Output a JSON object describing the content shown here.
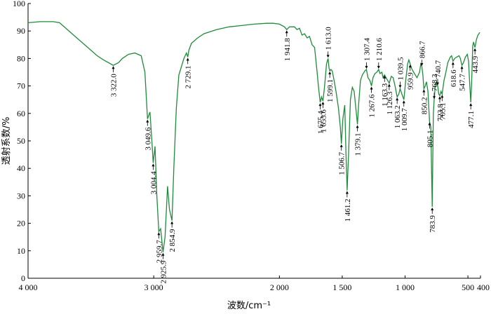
{
  "chart_data": {
    "type": "line",
    "xlabel": "波数/cm⁻¹",
    "ylabel": "透射系数/%",
    "xlim": [
      4000,
      400
    ],
    "ylim": [
      0,
      100
    ],
    "x_ticks": [
      4000,
      3000,
      2000,
      1500,
      1000,
      500,
      400
    ],
    "x_tick_labels": [
      "4 000",
      "3 000",
      "2 000",
      "1 500",
      "1 000",
      "500",
      "400"
    ],
    "y_ticks": [
      0,
      10,
      20,
      30,
      40,
      50,
      60,
      70,
      80,
      90,
      100
    ],
    "y_tick_labels": [
      "0",
      "10",
      "20",
      "30",
      "40",
      "50",
      "60",
      "70",
      "80",
      "90",
      "100"
    ],
    "line_color": "#1e8c3a",
    "series": [
      {
        "points": [
          [
            4000,
            93.0
          ],
          [
            3900,
            93.4
          ],
          [
            3800,
            93.4
          ],
          [
            3750,
            93.0
          ],
          [
            3700,
            91.0
          ],
          [
            3650,
            89.0
          ],
          [
            3600,
            87.0
          ],
          [
            3550,
            85.0
          ],
          [
            3500,
            83.0
          ],
          [
            3450,
            81.0
          ],
          [
            3400,
            79.5
          ],
          [
            3322,
            77.5
          ],
          [
            3280,
            78.5
          ],
          [
            3250,
            80.0
          ],
          [
            3200,
            81.5
          ],
          [
            3150,
            82.0
          ],
          [
            3100,
            81.0
          ],
          [
            3070,
            75.0
          ],
          [
            3049.6,
            58.0
          ],
          [
            3030,
            60.5
          ],
          [
            3015,
            50.0
          ],
          [
            3004.4,
            42.0
          ],
          [
            2990,
            48.0
          ],
          [
            2975,
            30.0
          ],
          [
            2959.7,
            17.0
          ],
          [
            2945,
            18.0
          ],
          [
            2925.9,
            9.5
          ],
          [
            2910,
            15.0
          ],
          [
            2890,
            33.5
          ],
          [
            2875,
            25.0
          ],
          [
            2854.9,
            21.0
          ],
          [
            2840,
            40.0
          ],
          [
            2820,
            62.0
          ],
          [
            2800,
            74.0
          ],
          [
            2760,
            80.0
          ],
          [
            2740,
            82.0
          ],
          [
            2729.1,
            80.5
          ],
          [
            2720,
            83.0
          ],
          [
            2700,
            85.5
          ],
          [
            2650,
            87.5
          ],
          [
            2600,
            89.0
          ],
          [
            2500,
            90.5
          ],
          [
            2400,
            91.5
          ],
          [
            2300,
            92.0
          ],
          [
            2200,
            92.5
          ],
          [
            2100,
            92.8
          ],
          [
            2050,
            92.8
          ],
          [
            2000,
            92.5
          ],
          [
            1960,
            91.5
          ],
          [
            1941.8,
            90.5
          ],
          [
            1920,
            91.5
          ],
          [
            1880,
            91.5
          ],
          [
            1860,
            90.5
          ],
          [
            1840,
            91.0
          ],
          [
            1820,
            88.5
          ],
          [
            1800,
            89.0
          ],
          [
            1780,
            87.5
          ],
          [
            1760,
            88.0
          ],
          [
            1740,
            85.0
          ],
          [
            1720,
            84.0
          ],
          [
            1700,
            75.0
          ],
          [
            1690,
            70.0
          ],
          [
            1675.4,
            64.0
          ],
          [
            1665,
            66.0
          ],
          [
            1653.6,
            64.5
          ],
          [
            1640,
            70.0
          ],
          [
            1625,
            78.0
          ],
          [
            1613,
            80.0
          ],
          [
            1605,
            76.5
          ],
          [
            1599.1,
            75.5
          ],
          [
            1590,
            76.0
          ],
          [
            1580,
            75.5
          ],
          [
            1565,
            72.0
          ],
          [
            1550,
            68.0
          ],
          [
            1530,
            62.0
          ],
          [
            1515,
            55.0
          ],
          [
            1506.7,
            49.0
          ],
          [
            1495,
            58.0
          ],
          [
            1480,
            63.0
          ],
          [
            1470,
            45.0
          ],
          [
            1461.2,
            32.0
          ],
          [
            1450,
            45.0
          ],
          [
            1435,
            65.0
          ],
          [
            1420,
            69.5
          ],
          [
            1405,
            68.0
          ],
          [
            1392,
            62.0
          ],
          [
            1379.1,
            56.0
          ],
          [
            1370,
            63.0
          ],
          [
            1355,
            72.0
          ],
          [
            1340,
            74.0
          ],
          [
            1320,
            75.5
          ],
          [
            1307.4,
            76.0
          ],
          [
            1295,
            73.0
          ],
          [
            1280,
            72.0
          ],
          [
            1267.6,
            70.0
          ],
          [
            1255,
            73.0
          ],
          [
            1240,
            74.5
          ],
          [
            1225,
            75.0
          ],
          [
            1210.6,
            76.0
          ],
          [
            1200,
            74.5
          ],
          [
            1185,
            75.0
          ],
          [
            1175,
            73.0
          ],
          [
            1163.3,
            74.0
          ],
          [
            1145,
            72.5
          ],
          [
            1126.3,
            71.0
          ],
          [
            1110,
            73.5
          ],
          [
            1095,
            73.0
          ],
          [
            1080,
            70.0
          ],
          [
            1063.2,
            66.0
          ],
          [
            1050,
            67.0
          ],
          [
            1039.5,
            69.0
          ],
          [
            1025,
            67.0
          ],
          [
            1009.7,
            65.0
          ],
          [
            995,
            72.0
          ],
          [
            980,
            78.0
          ],
          [
            970,
            79.5
          ],
          [
            959.9,
            78.0
          ],
          [
            945,
            76.0
          ],
          [
            925,
            74.5
          ],
          [
            905,
            73.0
          ],
          [
            885,
            75.0
          ],
          [
            875,
            78.0
          ],
          [
            866.7,
            77.0
          ],
          [
            858,
            74.0
          ],
          [
            850.2,
            69.0
          ],
          [
            840,
            70.0
          ],
          [
            830,
            71.5
          ],
          [
            818,
            68.0
          ],
          [
            805.1,
            57.0
          ],
          [
            795,
            55.0
          ],
          [
            783.9,
            26.0
          ],
          [
            775,
            60.0
          ],
          [
            768.3,
            65.0
          ],
          [
            760,
            70.0
          ],
          [
            750,
            71.5
          ],
          [
            740.7,
            70.0
          ],
          [
            732,
            67.0
          ],
          [
            723.8,
            66.5
          ],
          [
            714,
            68.0
          ],
          [
            705.1,
            67.0
          ],
          [
            690,
            72.0
          ],
          [
            675,
            75.0
          ],
          [
            660,
            78.5
          ],
          [
            640,
            80.5
          ],
          [
            630,
            81.0
          ],
          [
            618.6,
            79.0
          ],
          [
            605,
            80.0
          ],
          [
            590,
            80.5
          ],
          [
            570,
            81.0
          ],
          [
            560,
            80.0
          ],
          [
            547.7,
            77.5
          ],
          [
            535,
            78.5
          ],
          [
            520,
            80.5
          ],
          [
            505,
            81.5
          ],
          [
            495,
            79.0
          ],
          [
            485,
            70.0
          ],
          [
            477.1,
            64.0
          ],
          [
            470,
            72.0
          ],
          [
            462,
            84.5
          ],
          [
            455,
            86.0
          ],
          [
            443.9,
            84.0
          ],
          [
            432,
            87.0
          ],
          [
            420,
            88.5
          ],
          [
            405,
            89.5
          ]
        ]
      }
    ],
    "annotations": [
      {
        "label": "3 322.0",
        "x": 3322.0,
        "y": 77.5,
        "dir": "down"
      },
      {
        "label": "3 049.6",
        "x": 3049.6,
        "y": 58.0,
        "dir": "down"
      },
      {
        "label": "3 004.4",
        "x": 3004.4,
        "y": 42.0,
        "dir": "down"
      },
      {
        "label": "2 959.7",
        "x": 2959.7,
        "y": 17.0,
        "dir": "down"
      },
      {
        "label": "2 925.9",
        "x": 2925.9,
        "y": 9.5,
        "dir": "down"
      },
      {
        "label": "2 854.9",
        "x": 2854.9,
        "y": 21.0,
        "dir": "down"
      },
      {
        "label": "2 729.1",
        "x": 2729.1,
        "y": 80.5,
        "dir": "down"
      },
      {
        "label": "1 941.8",
        "x": 1941.8,
        "y": 90.5,
        "dir": "down"
      },
      {
        "label": "1 675.4",
        "x": 1675.4,
        "y": 64.0,
        "dir": "down"
      },
      {
        "label": "1 653.6",
        "x": 1653.6,
        "y": 64.5,
        "dir": "down"
      },
      {
        "label": "1 613.0",
        "x": 1613.0,
        "y": 80.0,
        "dir": "up"
      },
      {
        "label": "1 599.1",
        "x": 1599.1,
        "y": 75.5,
        "dir": "down"
      },
      {
        "label": "1 506.7",
        "x": 1506.7,
        "y": 49.0,
        "dir": "down"
      },
      {
        "label": "1 461.2",
        "x": 1461.2,
        "y": 32.0,
        "dir": "down"
      },
      {
        "label": "1 379.1",
        "x": 1379.1,
        "y": 56.0,
        "dir": "down"
      },
      {
        "label": "1 307.4",
        "x": 1307.4,
        "y": 76.0,
        "dir": "up"
      },
      {
        "label": "1 267.6",
        "x": 1267.6,
        "y": 70.0,
        "dir": "down"
      },
      {
        "label": "1 210.6",
        "x": 1210.6,
        "y": 76.0,
        "dir": "up"
      },
      {
        "label": "1 163.3",
        "x": 1163.3,
        "y": 74.0,
        "dir": "down"
      },
      {
        "label": "1 126.3",
        "x": 1126.3,
        "y": 71.0,
        "dir": "down"
      },
      {
        "label": "1 063.2",
        "x": 1063.2,
        "y": 66.0,
        "dir": "down"
      },
      {
        "label": "1 039.5",
        "x": 1039.5,
        "y": 69.0,
        "dir": "up"
      },
      {
        "label": "1 009.7",
        "x": 1009.7,
        "y": 65.0,
        "dir": "down"
      },
      {
        "label": "959.9",
        "x": 959.9,
        "y": 78.0,
        "dir": "down"
      },
      {
        "label": "866.7",
        "x": 866.7,
        "y": 77.0,
        "dir": "up"
      },
      {
        "label": "850.2",
        "x": 850.2,
        "y": 69.0,
        "dir": "down"
      },
      {
        "label": "805.1",
        "x": 805.1,
        "y": 57.0,
        "dir": "down"
      },
      {
        "label": "783.9",
        "x": 783.9,
        "y": 26.0,
        "dir": "down"
      },
      {
        "label": "768.3",
        "x": 768.3,
        "y": 65.0,
        "dir": "up"
      },
      {
        "label": "740.7",
        "x": 740.7,
        "y": 70.0,
        "dir": "up"
      },
      {
        "label": "723.8",
        "x": 723.8,
        "y": 66.5,
        "dir": "down"
      },
      {
        "label": "705.1",
        "x": 705.1,
        "y": 67.0,
        "dir": "down"
      },
      {
        "label": "618.6",
        "x": 618.6,
        "y": 79.0,
        "dir": "down"
      },
      {
        "label": "547.7",
        "x": 547.7,
        "y": 77.5,
        "dir": "down"
      },
      {
        "label": "477.1",
        "x": 477.1,
        "y": 64.0,
        "dir": "down"
      },
      {
        "label": "443.9",
        "x": 443.9,
        "y": 84.0,
        "dir": "down"
      }
    ]
  }
}
